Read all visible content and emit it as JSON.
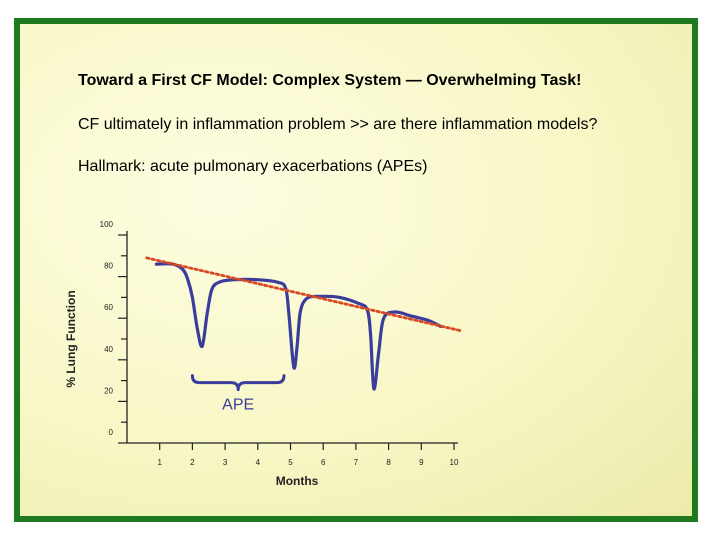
{
  "slide": {
    "title": "Toward a First CF Model: Complex System — Overwhelming Task!",
    "bullets": [
      "CF ultimately in inflammation problem  >> are there inflammation models?",
      "Hallmark: acute pulmonary exacerbations (APEs)"
    ],
    "border_color": "#1e7a1e"
  },
  "chart_data": {
    "type": "line",
    "title": "",
    "xlabel": "Months",
    "ylabel": "% Lung Function",
    "xlim": [
      0,
      10
    ],
    "ylim": [
      0,
      100
    ],
    "xticks": [
      1,
      2,
      3,
      4,
      5,
      6,
      7,
      8,
      9,
      10
    ],
    "yticks": [
      0,
      20,
      40,
      60,
      80,
      100
    ],
    "grid": false,
    "series": [
      {
        "style": "solid",
        "color": "#3a3d9c",
        "points": [
          [
            0.9,
            86
          ],
          [
            1.4,
            86
          ],
          [
            1.7,
            83.5
          ],
          [
            1.85,
            79
          ],
          [
            2.0,
            70
          ],
          [
            2.15,
            55
          ],
          [
            2.3,
            46.5
          ],
          [
            2.45,
            62
          ],
          [
            2.6,
            74
          ],
          [
            2.85,
            77.5
          ],
          [
            3.3,
            78.5
          ],
          [
            4.0,
            78.5
          ],
          [
            4.6,
            77.3
          ],
          [
            4.85,
            74.5
          ],
          [
            4.95,
            62
          ],
          [
            5.1,
            36.5
          ],
          [
            5.2,
            46
          ],
          [
            5.3,
            63
          ],
          [
            5.5,
            69.5
          ],
          [
            5.9,
            70.5
          ],
          [
            6.5,
            70
          ],
          [
            7.1,
            67
          ],
          [
            7.35,
            64
          ],
          [
            7.45,
            52
          ],
          [
            7.55,
            26
          ],
          [
            7.7,
            44
          ],
          [
            7.85,
            60
          ],
          [
            8.2,
            63
          ],
          [
            8.7,
            61
          ],
          [
            9.2,
            59
          ],
          [
            9.6,
            56
          ]
        ]
      },
      {
        "style": "dotted",
        "color": "#d84a24",
        "points": [
          [
            0.6,
            89
          ],
          [
            10.2,
            54
          ]
        ]
      }
    ],
    "annotations": [
      {
        "text": "APE",
        "brace_from_x": 2,
        "brace_to_x": 4.8,
        "brace_y": 29,
        "color": "#3a3d9c"
      }
    ]
  }
}
